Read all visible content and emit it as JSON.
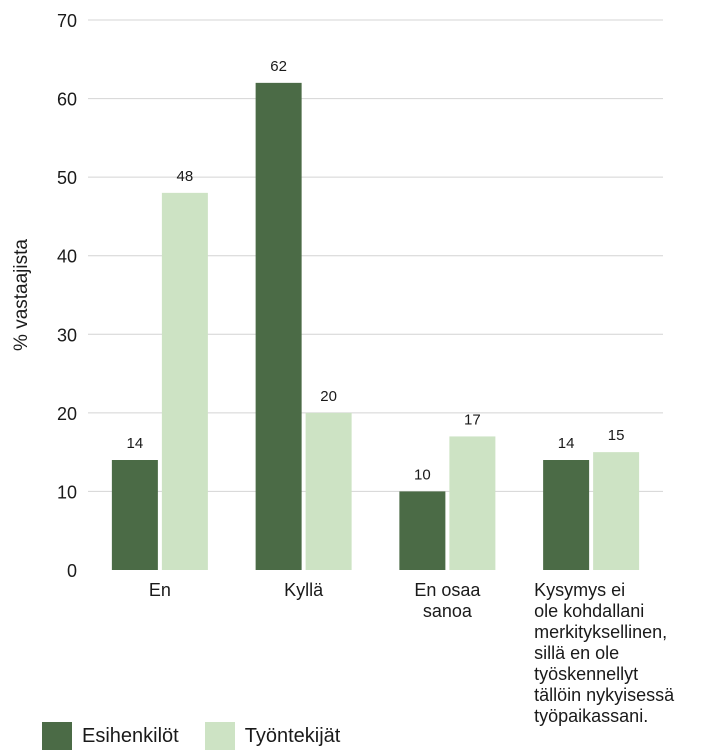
{
  "chart_data": {
    "type": "bar",
    "title": "",
    "xlabel": "",
    "ylabel": "% vastaajista",
    "ylim": [
      0,
      70
    ],
    "yticks": [
      0,
      10,
      20,
      30,
      40,
      50,
      60,
      70
    ],
    "grid": true,
    "legend_position": "bottom-left",
    "categories": [
      "En",
      "Kyllä",
      "En osaa sanoa",
      "Kysymys ei ole kohdallani merkityksellinen, sillä en ole työskennellyt tällöin nykyisessä työpaikassani."
    ],
    "category_lines": [
      [
        "En"
      ],
      [
        "Kyllä"
      ],
      [
        "En osaa",
        "sanoa"
      ],
      [
        "Kysymys ei",
        "ole kohdallani",
        "merkityksellinen,",
        "sillä en ole",
        "työskennellyt",
        "tällöin nykyisessä",
        "työpaikassani."
      ]
    ],
    "series": [
      {
        "name": "Esihenkilöt",
        "color": "#4b6b46",
        "values": [
          14,
          62,
          10,
          14
        ]
      },
      {
        "name": "Työntekijät",
        "color": "#cde3c4",
        "values": [
          48,
          20,
          17,
          15
        ]
      }
    ]
  }
}
